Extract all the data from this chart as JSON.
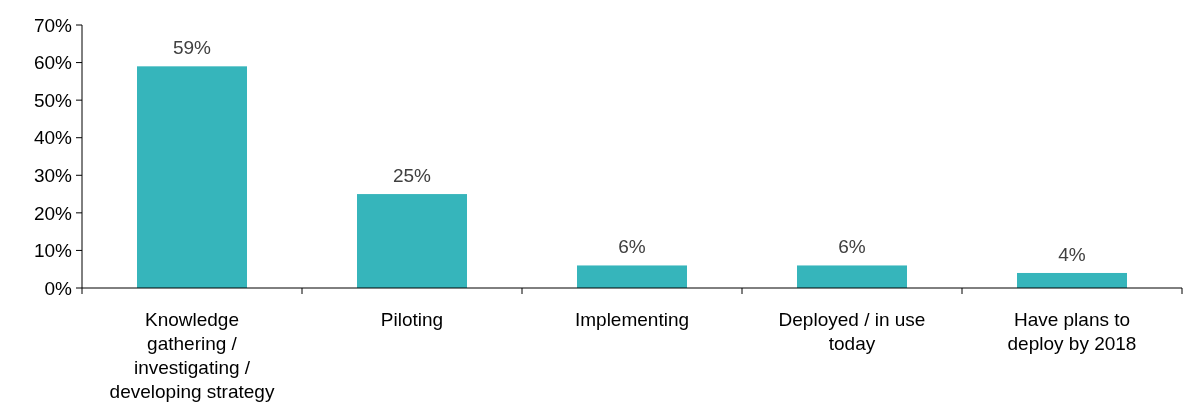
{
  "chart_data": {
    "type": "bar",
    "categories": [
      "Knowledge gathering / investigating / developing strategy",
      "Piloting",
      "Implementing",
      "Deployed / in use today",
      "Have plans to deploy by 2018"
    ],
    "values": [
      59,
      25,
      6,
      6,
      4
    ],
    "value_labels": [
      "59%",
      "25%",
      "6%",
      "6%",
      "4%"
    ],
    "color": "#36b5bb",
    "ylim": [
      0,
      70
    ],
    "yticks": [
      {
        "value": 0,
        "label": "0%"
      },
      {
        "value": 10,
        "label": "10%"
      },
      {
        "value": 20,
        "label": "20%"
      },
      {
        "value": 30,
        "label": "30%"
      },
      {
        "value": 40,
        "label": "40%"
      },
      {
        "value": 50,
        "label": "50%"
      },
      {
        "value": 60,
        "label": "60%"
      },
      {
        "value": 70,
        "label": "70%"
      }
    ],
    "grid": false
  }
}
